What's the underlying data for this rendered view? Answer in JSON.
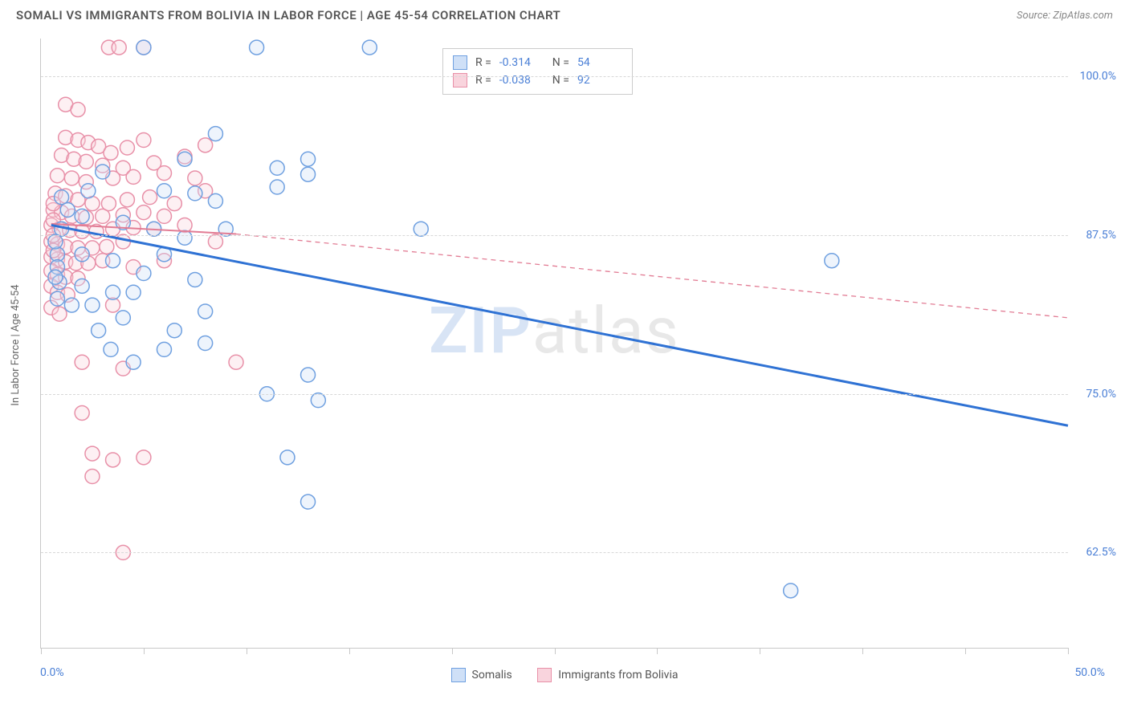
{
  "header": {
    "title": "SOMALI VS IMMIGRANTS FROM BOLIVIA IN LABOR FORCE | AGE 45-54 CORRELATION CHART",
    "source": "Source: ZipAtlas.com"
  },
  "chart": {
    "type": "scatter",
    "y_axis_label": "In Labor Force | Age 45-54",
    "watermark": {
      "part1": "ZIP",
      "part2": "atlas"
    },
    "xlim": [
      0,
      50
    ],
    "ylim": [
      55,
      103
    ],
    "x_ticks": [
      0,
      5,
      10,
      15,
      20,
      25,
      30,
      35,
      40,
      45,
      50
    ],
    "x_start_label": "0.0%",
    "x_end_label": "50.0%",
    "y_ticks": [
      {
        "v": 62.5,
        "label": "62.5%"
      },
      {
        "v": 75.0,
        "label": "75.0%"
      },
      {
        "v": 87.5,
        "label": "87.5%"
      },
      {
        "v": 100.0,
        "label": "100.0%"
      }
    ],
    "grid_color": "#d8d8d8",
    "background_color": "#ffffff",
    "marker_radius": 9,
    "colors": {
      "series_a_fill": "#cfe0f7",
      "series_a_stroke": "#6fa0e0",
      "series_b_fill": "#f9d4dd",
      "series_b_stroke": "#e890a8",
      "trend_a": "#2f72d4",
      "trend_b": "#e27c94",
      "tick_text": "#4a7fd6"
    },
    "legend_top": {
      "rows": [
        {
          "swatch": "blue",
          "r_label": "R =",
          "r_value": "-0.314",
          "n_label": "N =",
          "n_value": "54"
        },
        {
          "swatch": "pink",
          "r_label": "R =",
          "r_value": "-0.038",
          "n_label": "N =",
          "n_value": "92"
        }
      ]
    },
    "legend_bottom": {
      "items": [
        {
          "swatch": "blue",
          "label": "Somalis"
        },
        {
          "swatch": "pink",
          "label": "Immigrants from Bolivia"
        }
      ]
    },
    "trend_lines": {
      "a": {
        "x1": 0.5,
        "y1": 88.3,
        "x2": 50,
        "y2": 72.5,
        "dash": "none",
        "width": 3
      },
      "b_solid": {
        "x1": 0.5,
        "y1": 88.4,
        "x2": 9.5,
        "y2": 87.6,
        "dash": "none",
        "width": 2
      },
      "b_dash": {
        "x1": 9.5,
        "y1": 87.6,
        "x2": 50,
        "y2": 81.0,
        "dash": "6 5",
        "width": 1.3
      }
    },
    "series_a": [
      {
        "x": 5.0,
        "y": 102.3
      },
      {
        "x": 10.5,
        "y": 102.3
      },
      {
        "x": 16.0,
        "y": 102.3
      },
      {
        "x": 8.5,
        "y": 95.5
      },
      {
        "x": 7.0,
        "y": 93.5
      },
      {
        "x": 13.0,
        "y": 93.5
      },
      {
        "x": 13.0,
        "y": 92.3
      },
      {
        "x": 3.0,
        "y": 92.5
      },
      {
        "x": 6.0,
        "y": 91.0
      },
      {
        "x": 7.5,
        "y": 90.8
      },
      {
        "x": 8.5,
        "y": 90.2
      },
      {
        "x": 11.5,
        "y": 92.8
      },
      {
        "x": 11.5,
        "y": 91.3
      },
      {
        "x": 2.0,
        "y": 89.0
      },
      {
        "x": 4.0,
        "y": 88.5
      },
      {
        "x": 5.5,
        "y": 88.0
      },
      {
        "x": 7.0,
        "y": 87.3
      },
      {
        "x": 9.0,
        "y": 88.0
      },
      {
        "x": 18.5,
        "y": 88.0
      },
      {
        "x": 0.8,
        "y": 86.0
      },
      {
        "x": 0.8,
        "y": 85.0
      },
      {
        "x": 0.9,
        "y": 83.8
      },
      {
        "x": 2.0,
        "y": 86.0
      },
      {
        "x": 3.5,
        "y": 85.5
      },
      {
        "x": 5.0,
        "y": 84.5
      },
      {
        "x": 6.0,
        "y": 86.0
      },
      {
        "x": 2.0,
        "y": 83.5
      },
      {
        "x": 3.5,
        "y": 83.0
      },
      {
        "x": 4.5,
        "y": 83.0
      },
      {
        "x": 0.8,
        "y": 82.5
      },
      {
        "x": 1.5,
        "y": 82.0
      },
      {
        "x": 2.5,
        "y": 82.0
      },
      {
        "x": 4.0,
        "y": 81.0
      },
      {
        "x": 6.5,
        "y": 80.0
      },
      {
        "x": 8.0,
        "y": 81.5
      },
      {
        "x": 6.0,
        "y": 78.5
      },
      {
        "x": 8.0,
        "y": 79.0
      },
      {
        "x": 13.0,
        "y": 76.5
      },
      {
        "x": 11.0,
        "y": 75.0
      },
      {
        "x": 13.5,
        "y": 74.5
      },
      {
        "x": 12.0,
        "y": 70.0
      },
      {
        "x": 13.0,
        "y": 66.5
      },
      {
        "x": 38.5,
        "y": 85.5
      },
      {
        "x": 36.5,
        "y": 59.5
      },
      {
        "x": 1.0,
        "y": 88.0
      },
      {
        "x": 1.3,
        "y": 89.5
      },
      {
        "x": 2.3,
        "y": 91.0
      },
      {
        "x": 0.7,
        "y": 84.2
      },
      {
        "x": 0.7,
        "y": 87.0
      },
      {
        "x": 1.0,
        "y": 90.5
      },
      {
        "x": 2.8,
        "y": 80.0
      },
      {
        "x": 3.4,
        "y": 78.5
      },
      {
        "x": 4.5,
        "y": 77.5
      },
      {
        "x": 7.5,
        "y": 84.0
      }
    ],
    "series_b": [
      {
        "x": 3.3,
        "y": 102.3
      },
      {
        "x": 3.8,
        "y": 102.3
      },
      {
        "x": 5.0,
        "y": 102.3
      },
      {
        "x": 1.2,
        "y": 97.8
      },
      {
        "x": 1.8,
        "y": 97.4
      },
      {
        "x": 1.2,
        "y": 95.2
      },
      {
        "x": 1.8,
        "y": 95.0
      },
      {
        "x": 2.3,
        "y": 94.8
      },
      {
        "x": 2.8,
        "y": 94.5
      },
      {
        "x": 3.4,
        "y": 94.0
      },
      {
        "x": 4.2,
        "y": 94.4
      },
      {
        "x": 5.0,
        "y": 95.0
      },
      {
        "x": 8.0,
        "y": 94.6
      },
      {
        "x": 1.0,
        "y": 93.8
      },
      {
        "x": 1.6,
        "y": 93.5
      },
      {
        "x": 2.2,
        "y": 93.3
      },
      {
        "x": 3.0,
        "y": 93.0
      },
      {
        "x": 4.0,
        "y": 92.8
      },
      {
        "x": 5.5,
        "y": 93.2
      },
      {
        "x": 7.0,
        "y": 93.7
      },
      {
        "x": 0.8,
        "y": 92.2
      },
      {
        "x": 1.5,
        "y": 92.0
      },
      {
        "x": 2.2,
        "y": 91.7
      },
      {
        "x": 3.5,
        "y": 92.0
      },
      {
        "x": 4.5,
        "y": 92.1
      },
      {
        "x": 6.0,
        "y": 92.4
      },
      {
        "x": 8.0,
        "y": 91.0
      },
      {
        "x": 0.7,
        "y": 90.8
      },
      {
        "x": 1.2,
        "y": 90.6
      },
      {
        "x": 1.8,
        "y": 90.3
      },
      {
        "x": 2.5,
        "y": 90.0
      },
      {
        "x": 3.3,
        "y": 90.0
      },
      {
        "x": 4.2,
        "y": 90.3
      },
      {
        "x": 5.3,
        "y": 90.5
      },
      {
        "x": 6.5,
        "y": 90.0
      },
      {
        "x": 0.6,
        "y": 89.5
      },
      {
        "x": 1.0,
        "y": 89.3
      },
      {
        "x": 1.5,
        "y": 89.0
      },
      {
        "x": 2.2,
        "y": 88.9
      },
      {
        "x": 3.0,
        "y": 89.0
      },
      {
        "x": 4.0,
        "y": 89.1
      },
      {
        "x": 5.0,
        "y": 89.3
      },
      {
        "x": 6.0,
        "y": 89.0
      },
      {
        "x": 0.5,
        "y": 88.3
      },
      {
        "x": 0.9,
        "y": 88.0
      },
      {
        "x": 1.4,
        "y": 87.9
      },
      {
        "x": 2.0,
        "y": 87.8
      },
      {
        "x": 2.7,
        "y": 87.8
      },
      {
        "x": 3.5,
        "y": 88.0
      },
      {
        "x": 4.5,
        "y": 88.1
      },
      {
        "x": 5.5,
        "y": 88.0
      },
      {
        "x": 0.5,
        "y": 87.0
      },
      {
        "x": 0.8,
        "y": 86.8
      },
      {
        "x": 1.2,
        "y": 86.6
      },
      {
        "x": 1.8,
        "y": 86.5
      },
      {
        "x": 2.5,
        "y": 86.5
      },
      {
        "x": 3.2,
        "y": 86.6
      },
      {
        "x": 4.0,
        "y": 87.0
      },
      {
        "x": 0.5,
        "y": 85.8
      },
      {
        "x": 0.8,
        "y": 85.6
      },
      {
        "x": 1.2,
        "y": 85.4
      },
      {
        "x": 1.7,
        "y": 85.3
      },
      {
        "x": 2.3,
        "y": 85.3
      },
      {
        "x": 3.0,
        "y": 85.5
      },
      {
        "x": 0.5,
        "y": 84.7
      },
      {
        "x": 0.8,
        "y": 84.4
      },
      {
        "x": 1.2,
        "y": 84.2
      },
      {
        "x": 1.8,
        "y": 84.1
      },
      {
        "x": 0.5,
        "y": 83.5
      },
      {
        "x": 0.8,
        "y": 83.0
      },
      {
        "x": 1.3,
        "y": 82.8
      },
      {
        "x": 0.5,
        "y": 81.8
      },
      {
        "x": 0.9,
        "y": 81.3
      },
      {
        "x": 3.5,
        "y": 82.0
      },
      {
        "x": 4.5,
        "y": 85.0
      },
      {
        "x": 6.0,
        "y": 85.5
      },
      {
        "x": 2.0,
        "y": 77.5
      },
      {
        "x": 4.0,
        "y": 77.0
      },
      {
        "x": 9.5,
        "y": 77.5
      },
      {
        "x": 2.0,
        "y": 73.5
      },
      {
        "x": 2.5,
        "y": 70.3
      },
      {
        "x": 3.5,
        "y": 69.8
      },
      {
        "x": 5.0,
        "y": 70.0
      },
      {
        "x": 2.5,
        "y": 68.5
      },
      {
        "x": 4.0,
        "y": 62.5
      },
      {
        "x": 0.6,
        "y": 90.0
      },
      {
        "x": 0.6,
        "y": 88.7
      },
      {
        "x": 0.6,
        "y": 87.5
      },
      {
        "x": 0.6,
        "y": 86.3
      },
      {
        "x": 7.0,
        "y": 88.3
      },
      {
        "x": 8.5,
        "y": 87.0
      },
      {
        "x": 7.5,
        "y": 92.0
      }
    ]
  }
}
